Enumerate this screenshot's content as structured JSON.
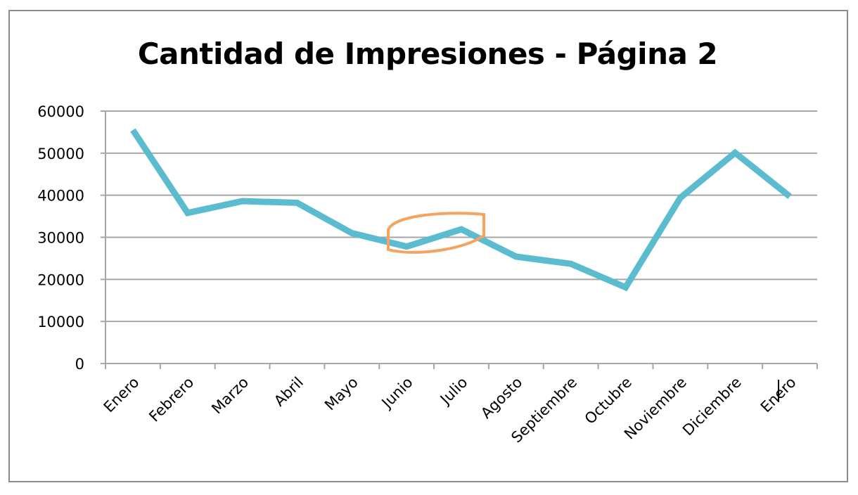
{
  "chart_data": {
    "type": "line",
    "title": "Cantidad de Impresiones - Página 2",
    "xlabel": "",
    "ylabel": "",
    "categories": [
      "Enero",
      "Febrero",
      "Marzo",
      "Abril",
      "Mayo",
      "Junio",
      "Julio",
      "Agosto",
      "Septiembre",
      "Octubre",
      "Noviembre",
      "Diciembre",
      "Enero"
    ],
    "series": [
      {
        "values": [
          55500,
          35800,
          38600,
          38200,
          31000,
          27800,
          31900,
          25400,
          23700,
          18100,
          39400,
          50100,
          39700
        ]
      }
    ],
    "ylim": [
      0,
      60000
    ],
    "yticks": [
      "0",
      "10000",
      "20000",
      "30000",
      "40000",
      "50000",
      "60000"
    ],
    "grid": true,
    "legend": "none",
    "colors": {
      "line": "#5bbccf",
      "grid": "#a6a6a6",
      "annotation": "#f4a460"
    },
    "annotation": {
      "shape": "ellipse",
      "around": [
        "Junio",
        "Julio"
      ]
    }
  }
}
